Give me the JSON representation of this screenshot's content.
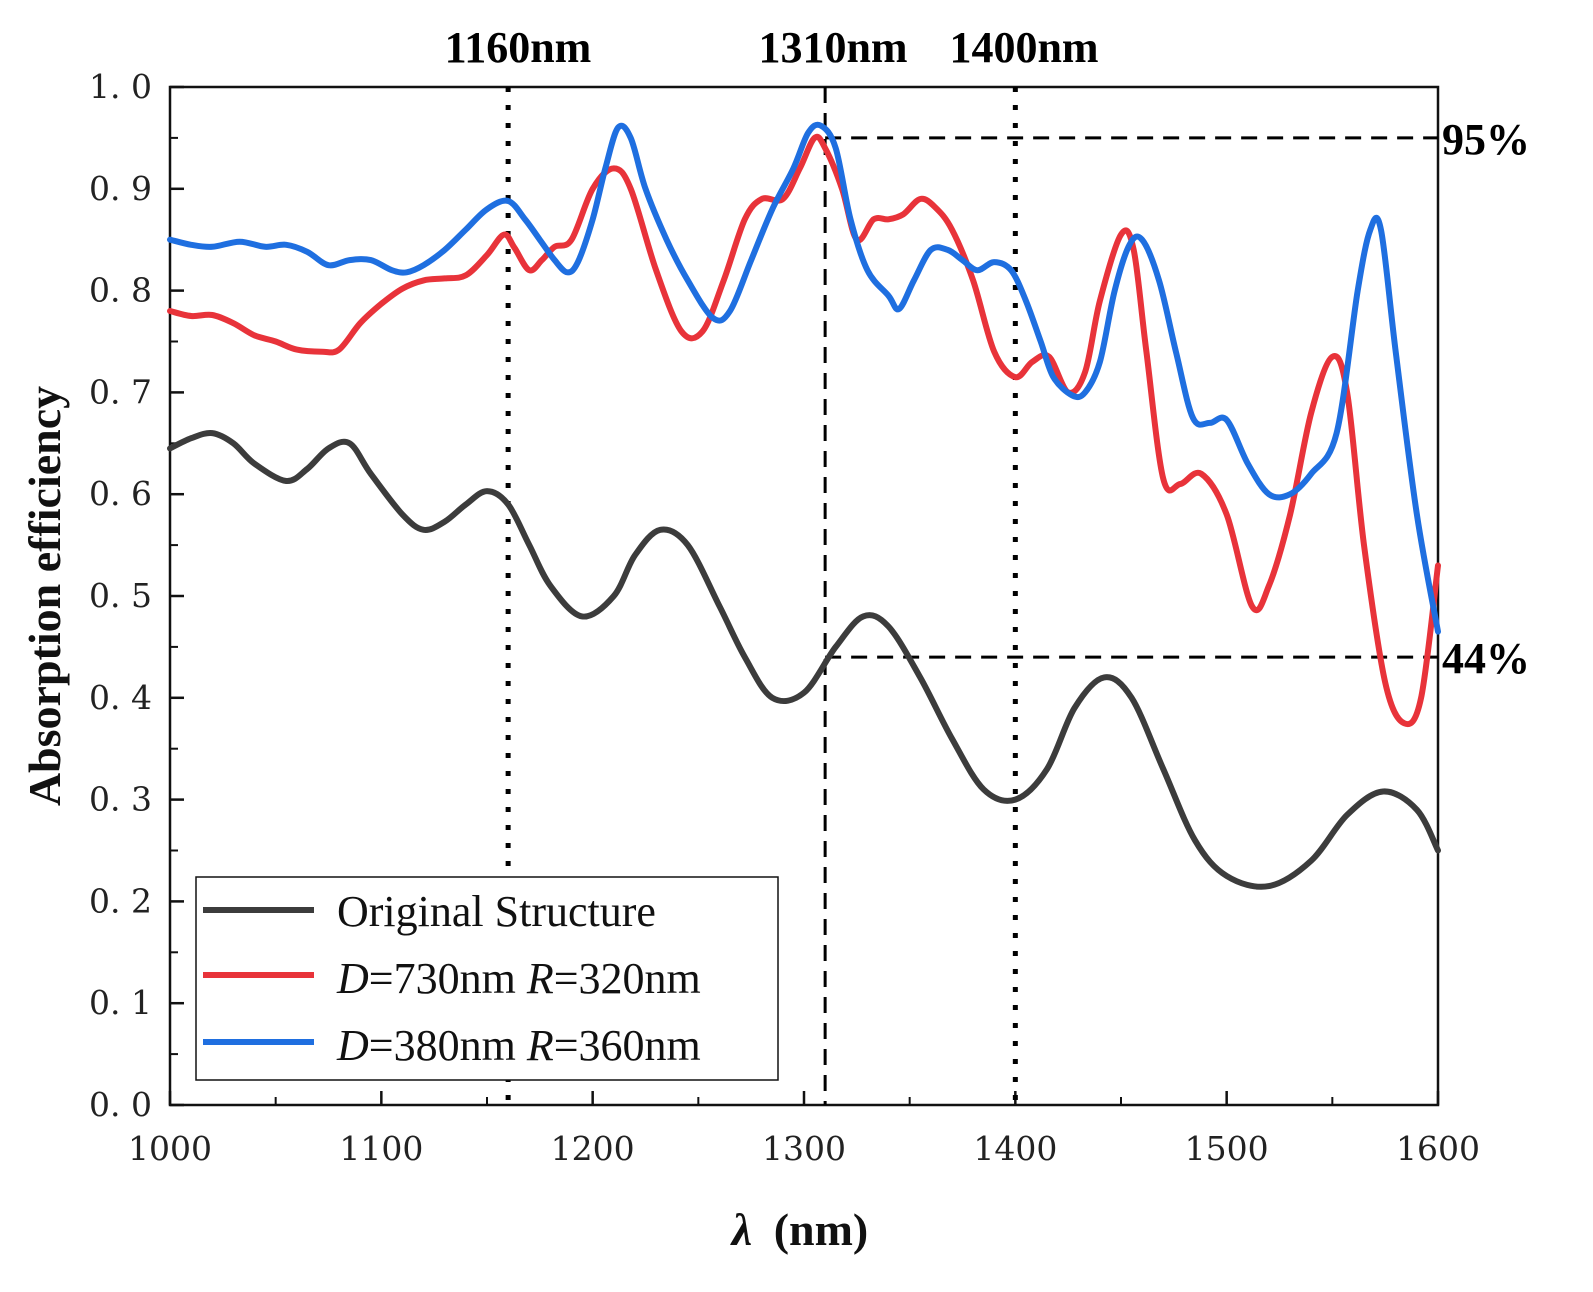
{
  "chart_data": {
    "type": "line",
    "xlabel_symbol": "λ",
    "xlabel_unit": "(nm)",
    "ylabel": "Absorption efficiency",
    "xlim": [
      1000,
      1600
    ],
    "ylim": [
      0.0,
      1.0
    ],
    "x_ticks": [
      "1000",
      "1100",
      "1200",
      "1300",
      "1400",
      "1500",
      "1600"
    ],
    "y_ticks": [
      "0. 0",
      "0. 1",
      "0. 2",
      "0. 3",
      "0. 4",
      "0. 5",
      "0. 6",
      "0. 7",
      "0. 8",
      "0. 9",
      "1. 0"
    ],
    "grid": false,
    "legend_position": "bottom-left",
    "vertical_markers": [
      {
        "x": 1160,
        "label": "1160nm",
        "style": "dotted"
      },
      {
        "x": 1310,
        "label": "1310nm",
        "style": "dashed"
      },
      {
        "x": 1400,
        "label": "1400nm",
        "style": "dotted"
      }
    ],
    "horizontal_markers": [
      {
        "y": 0.95,
        "from_x": 1310,
        "label": "95%"
      },
      {
        "y": 0.44,
        "from_x": 1310,
        "label": "44%"
      }
    ],
    "series": [
      {
        "name": "Original Structure",
        "color": "#3c3c3c",
        "x": [
          1000,
          1010,
          1020,
          1030,
          1040,
          1055,
          1065,
          1075,
          1085,
          1095,
          1110,
          1120,
          1130,
          1140,
          1150,
          1160,
          1170,
          1180,
          1195,
          1210,
          1220,
          1232,
          1245,
          1260,
          1272,
          1285,
          1300,
          1315,
          1328,
          1340,
          1355,
          1370,
          1385,
          1400,
          1415,
          1428,
          1442,
          1455,
          1470,
          1485,
          1500,
          1520,
          1540,
          1557,
          1574,
          1590,
          1600
        ],
        "y": [
          0.645,
          0.655,
          0.66,
          0.65,
          0.63,
          0.613,
          0.625,
          0.645,
          0.65,
          0.62,
          0.58,
          0.565,
          0.573,
          0.59,
          0.603,
          0.59,
          0.55,
          0.51,
          0.48,
          0.5,
          0.54,
          0.565,
          0.55,
          0.49,
          0.44,
          0.4,
          0.405,
          0.45,
          0.48,
          0.47,
          0.42,
          0.36,
          0.31,
          0.3,
          0.33,
          0.39,
          0.42,
          0.4,
          0.33,
          0.26,
          0.225,
          0.215,
          0.24,
          0.285,
          0.308,
          0.29,
          0.25
        ]
      },
      {
        "name": "D=730nm R=320nm",
        "name_d": "D",
        "name_d_val": "=730nm ",
        "name_r": "R",
        "name_r_val": "=320nm",
        "color": "#e8333a",
        "x": [
          1000,
          1010,
          1020,
          1030,
          1040,
          1050,
          1060,
          1072,
          1080,
          1090,
          1100,
          1110,
          1120,
          1130,
          1140,
          1150,
          1158,
          1163,
          1170,
          1176,
          1182,
          1190,
          1200,
          1210,
          1218,
          1230,
          1242,
          1252,
          1262,
          1272,
          1280,
          1290,
          1298,
          1305,
          1310,
          1318,
          1325,
          1333,
          1340,
          1347,
          1355,
          1362,
          1370,
          1380,
          1390,
          1400,
          1408,
          1416,
          1425,
          1433,
          1440,
          1450,
          1456,
          1462,
          1470,
          1478,
          1488,
          1500,
          1512,
          1520,
          1530,
          1540,
          1550,
          1557,
          1565,
          1575,
          1584,
          1592,
          1600
        ],
        "y": [
          0.78,
          0.775,
          0.776,
          0.768,
          0.756,
          0.75,
          0.742,
          0.74,
          0.742,
          0.768,
          0.787,
          0.802,
          0.81,
          0.812,
          0.815,
          0.835,
          0.855,
          0.842,
          0.82,
          0.83,
          0.843,
          0.85,
          0.9,
          0.92,
          0.9,
          0.82,
          0.76,
          0.76,
          0.81,
          0.87,
          0.89,
          0.89,
          0.92,
          0.95,
          0.94,
          0.9,
          0.85,
          0.87,
          0.87,
          0.875,
          0.89,
          0.882,
          0.86,
          0.81,
          0.74,
          0.715,
          0.73,
          0.735,
          0.7,
          0.72,
          0.79,
          0.855,
          0.84,
          0.74,
          0.615,
          0.61,
          0.62,
          0.58,
          0.49,
          0.51,
          0.58,
          0.68,
          0.735,
          0.7,
          0.55,
          0.415,
          0.375,
          0.4,
          0.53
        ]
      },
      {
        "name": "D=380nm R=360nm",
        "name_d": "D",
        "name_d_val": "=380nm ",
        "name_r": "R",
        "name_r_val": "=360nm",
        "color": "#1f6fe0",
        "x": [
          1000,
          1010,
          1020,
          1033,
          1045,
          1055,
          1065,
          1075,
          1085,
          1095,
          1105,
          1112,
          1120,
          1130,
          1140,
          1150,
          1160,
          1168,
          1175,
          1182,
          1188,
          1193,
          1200,
          1206,
          1212,
          1218,
          1225,
          1235,
          1245,
          1257,
          1265,
          1275,
          1285,
          1295,
          1302,
          1308,
          1315,
          1322,
          1330,
          1340,
          1345,
          1352,
          1360,
          1368,
          1375,
          1382,
          1390,
          1398,
          1405,
          1412,
          1418,
          1427,
          1433,
          1440,
          1447,
          1454,
          1460,
          1468,
          1476,
          1484,
          1492,
          1500,
          1510,
          1520,
          1530,
          1540,
          1552,
          1562,
          1568,
          1573,
          1580,
          1590,
          1600
        ],
        "y": [
          0.85,
          0.845,
          0.843,
          0.848,
          0.843,
          0.845,
          0.838,
          0.825,
          0.83,
          0.83,
          0.82,
          0.818,
          0.825,
          0.84,
          0.86,
          0.88,
          0.888,
          0.87,
          0.85,
          0.83,
          0.818,
          0.828,
          0.87,
          0.92,
          0.96,
          0.95,
          0.9,
          0.85,
          0.81,
          0.773,
          0.78,
          0.83,
          0.88,
          0.92,
          0.955,
          0.962,
          0.94,
          0.87,
          0.82,
          0.795,
          0.782,
          0.81,
          0.84,
          0.84,
          0.83,
          0.82,
          0.828,
          0.82,
          0.79,
          0.75,
          0.715,
          0.697,
          0.7,
          0.73,
          0.8,
          0.845,
          0.85,
          0.81,
          0.74,
          0.675,
          0.67,
          0.673,
          0.63,
          0.6,
          0.6,
          0.62,
          0.66,
          0.8,
          0.86,
          0.86,
          0.74,
          0.58,
          0.465
        ]
      }
    ]
  }
}
